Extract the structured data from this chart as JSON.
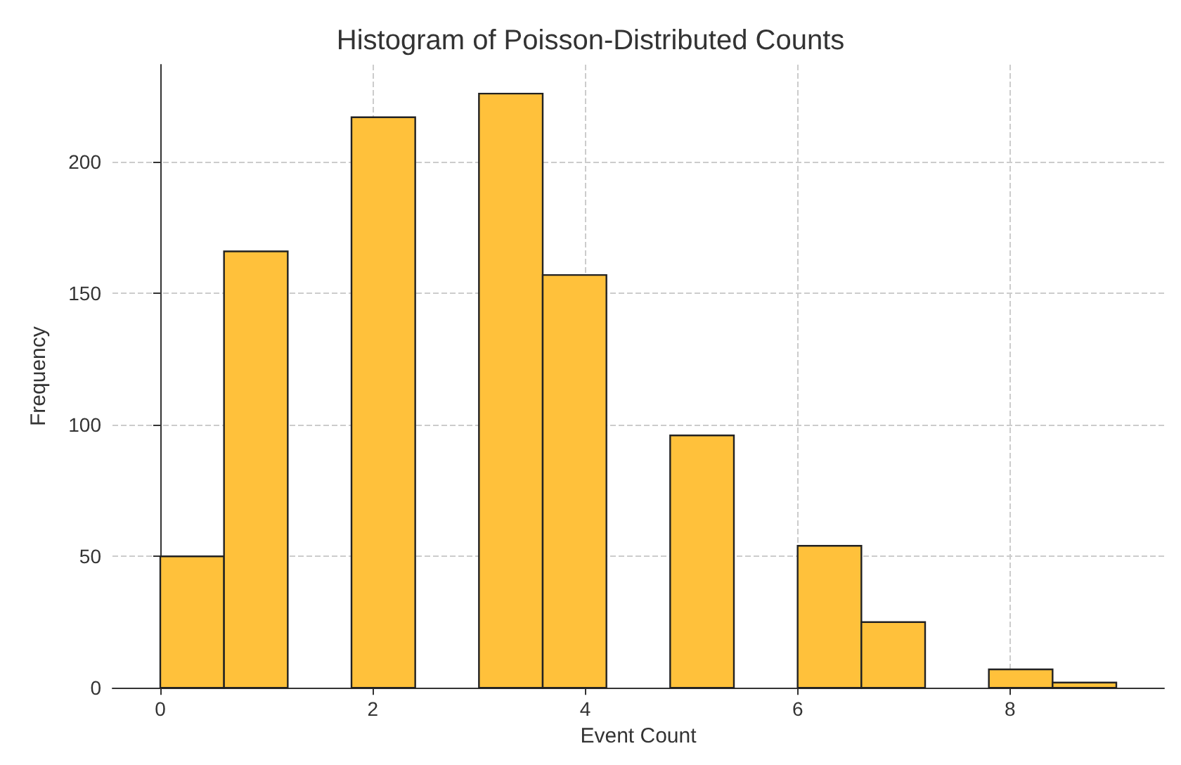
{
  "chart_data": {
    "type": "histogram",
    "title": "Histogram of Poisson-Distributed Counts",
    "xlabel": "Event Count",
    "ylabel": "Frequency",
    "bins": [
      0,
      0.6,
      1.2,
      1.8,
      2.4,
      3.0,
      3.6,
      4.2,
      4.8,
      5.4,
      6.0,
      6.6,
      7.2,
      7.8,
      8.4,
      9.0
    ],
    "values": [
      50,
      166,
      0,
      217,
      0,
      226,
      157,
      0,
      96,
      0,
      54,
      25,
      0,
      7,
      2
    ],
    "color": "#ffc13b",
    "xlim": [
      -0.45,
      9.45
    ],
    "xticks": [
      0,
      2,
      4,
      6,
      8
    ],
    "ylim": [
      0,
      237
    ],
    "yticks": [
      0,
      50,
      100,
      150,
      200
    ],
    "grid": true
  }
}
